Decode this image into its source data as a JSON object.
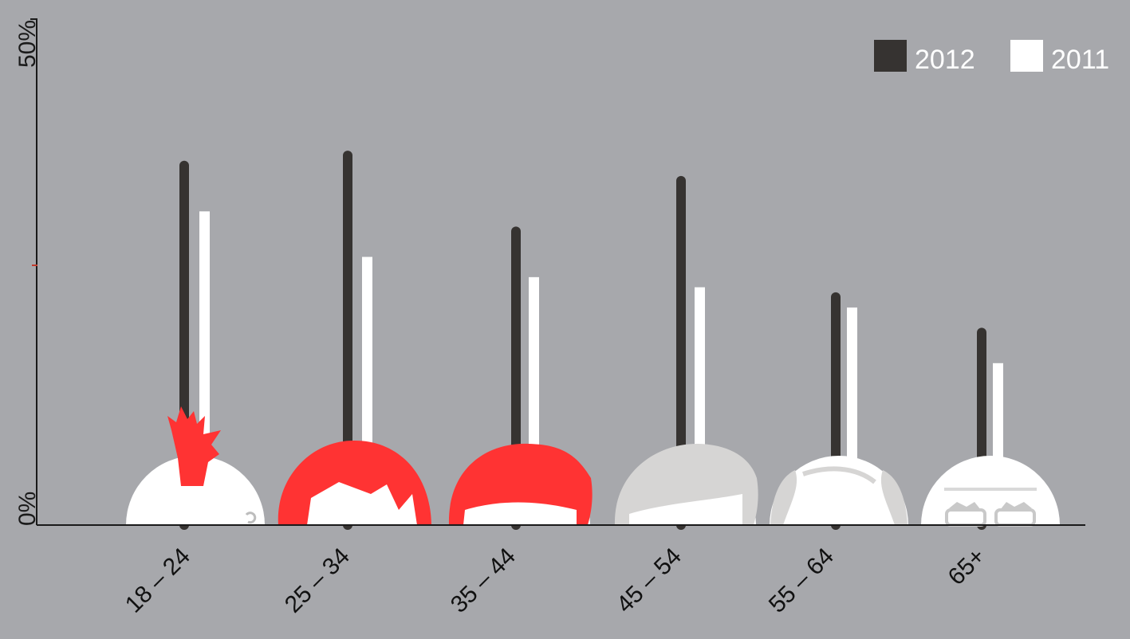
{
  "chart_data": {
    "type": "bar",
    "categories": [
      "18 – 24",
      "25 – 34",
      "35 – 44",
      "45 – 54",
      "55 – 64",
      "65+"
    ],
    "series": [
      {
        "name": "2012",
        "values": [
          36,
          37,
          29.5,
          34.5,
          23,
          19.5
        ]
      },
      {
        "name": "2011",
        "values": [
          31,
          26.5,
          24.5,
          23.5,
          21.5,
          16
        ]
      }
    ],
    "ylim": [
      0,
      50
    ],
    "ytick_labels": [
      "0%",
      "50%"
    ],
    "legend_position": "top-right",
    "grid": false
  },
  "colors": {
    "background": "#a7a8ac",
    "series_2012": "#363331",
    "series_2011": "#ffffff",
    "accent_hair": "#ff3333",
    "grey_hair": "#d6d5d4",
    "axis": "#1a1a1a",
    "mid_tick": "#c0392b"
  },
  "icons": [
    "mohawk-head-icon",
    "long-hair-head-icon",
    "bob-hair-head-icon",
    "grey-hair-head-icon",
    "balding-head-icon",
    "glasses-head-icon"
  ]
}
